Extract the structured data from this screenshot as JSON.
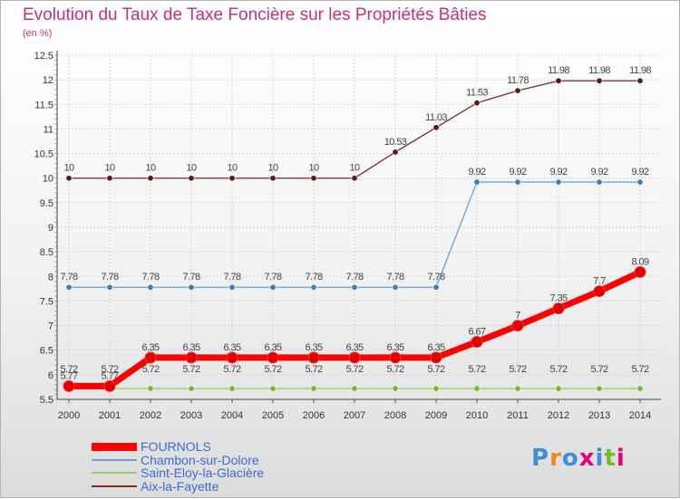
{
  "title": "Evolution du Taux de Taxe Foncière sur les Propriétés Bâties",
  "subtitle": "(en %)",
  "logo": {
    "text": "Proxiti",
    "colors": [
      "#3a8fd8",
      "#f08a1c",
      "#3a8fd8",
      "#e5007e",
      "#3a8fd8",
      "#7ab829",
      "#e5007e"
    ]
  },
  "chart_data": {
    "type": "line",
    "x": [
      "2000",
      "2001",
      "2002",
      "2003",
      "2004",
      "2005",
      "2006",
      "2007",
      "2008",
      "2009",
      "2010",
      "2011",
      "2012",
      "2013",
      "2014"
    ],
    "ylim": [
      5.5,
      12.5
    ],
    "yticks": [
      "5.5",
      "6",
      "6.5",
      "7",
      "7.5",
      "8",
      "8.5",
      "9",
      "9.5",
      "10",
      "10.5",
      "11",
      "11.5",
      "12",
      "12.5"
    ],
    "legend_position": "bottom-left",
    "series": [
      {
        "name": "FOURNOLS",
        "color": "#ff0000",
        "marker": "#e00000",
        "width": 7,
        "r": 6,
        "values": [
          5.77,
          5.77,
          6.35,
          6.35,
          6.35,
          6.35,
          6.35,
          6.35,
          6.35,
          6.35,
          6.67,
          7,
          7.35,
          7.7,
          8.09
        ],
        "labels": [
          "5.77",
          "5.77",
          "6.35",
          "6.35",
          "6.35",
          "6.35",
          "6.35",
          "6.35",
          "6.35",
          "6.35",
          "6.67",
          "7",
          "7.35",
          "7.7",
          "8.09"
        ],
        "label_dy": -8
      },
      {
        "name": "Chambon-sur-Dolore",
        "color": "#6aa0d8",
        "marker": "#3a7fc0",
        "width": 1.3,
        "r": 3.2,
        "values": [
          7.78,
          7.78,
          7.78,
          7.78,
          7.78,
          7.78,
          7.78,
          7.78,
          7.78,
          7.78,
          9.92,
          9.92,
          9.92,
          9.92,
          9.92
        ],
        "labels": [
          "7.78",
          "7.78",
          "7.78",
          "7.78",
          "7.78",
          "7.78",
          "7.78",
          "7.78",
          "7.78",
          "7.78",
          "9.92",
          "9.92",
          "9.92",
          "9.92",
          "9.92"
        ],
        "label_dy": -8
      },
      {
        "name": "Saint-Eloy-la-Glacière",
        "color": "#99d066",
        "marker": "#7ab829",
        "width": 1.3,
        "r": 3.2,
        "values": [
          5.72,
          5.72,
          5.72,
          5.72,
          5.72,
          5.72,
          5.72,
          5.72,
          5.72,
          5.72,
          5.72,
          5.72,
          5.72,
          5.72,
          5.72
        ],
        "labels": [
          "5.72",
          "5.72",
          "5.72",
          "5.72",
          "5.72",
          "5.72",
          "5.72",
          "5.72",
          "5.72",
          "5.72",
          "5.72",
          "5.72",
          "5.72",
          "5.72",
          "5.72"
        ],
        "label_dy": -18
      },
      {
        "name": "Aix-la-Fayette",
        "color": "#7a2a2a",
        "marker": "#5a1a1a",
        "width": 1.3,
        "r": 3.2,
        "values": [
          10,
          10,
          10,
          10,
          10,
          10,
          10,
          10,
          10.53,
          11.03,
          11.53,
          11.78,
          11.98,
          11.98,
          11.98
        ],
        "labels": [
          "10",
          "10",
          "10",
          "10",
          "10",
          "10",
          "10",
          "10",
          "10.53",
          "11.03",
          "11.53",
          "11.78",
          "11.98",
          "11.98",
          "11.98"
        ],
        "label_dy": -8
      }
    ]
  }
}
